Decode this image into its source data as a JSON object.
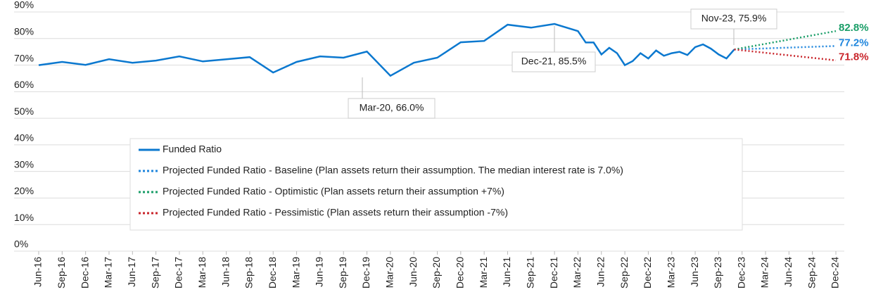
{
  "chart_data": {
    "type": "line",
    "xlim": [
      "Jun-16",
      "Dec-24"
    ],
    "xticks": [
      "Jun-16",
      "Sep-16",
      "Dec-16",
      "Mar-17",
      "Jun-17",
      "Sep-17",
      "Dec-17",
      "Mar-18",
      "Jun-18",
      "Sep-18",
      "Dec-18",
      "Mar-19",
      "Jun-19",
      "Sep-19",
      "Dec-19",
      "Mar-20",
      "Jun-20",
      "Sep-20",
      "Dec-20",
      "Mar-21",
      "Jun-21",
      "Sep-21",
      "Dec-21",
      "Mar-22",
      "Jun-22",
      "Sep-22",
      "Dec-22",
      "Mar-23",
      "Jun-23",
      "Sep-23",
      "Dec-23",
      "Mar-24",
      "Jun-24",
      "Sep-24",
      "Dec-24"
    ],
    "ylim": [
      0,
      90
    ],
    "yticks": [
      {
        "value": 0,
        "label": "0%"
      },
      {
        "value": 10,
        "label": "10%"
      },
      {
        "value": 20,
        "label": "20%"
      },
      {
        "value": 30,
        "label": "30%"
      },
      {
        "value": 40,
        "label": "40%"
      },
      {
        "value": 50,
        "label": "50%"
      },
      {
        "value": 60,
        "label": "60%"
      },
      {
        "value": 70,
        "label": "70%"
      },
      {
        "value": 80,
        "label": "80%"
      },
      {
        "value": 90,
        "label": "90%"
      }
    ],
    "grid": true,
    "series": [
      {
        "name": "Funded Ratio",
        "color": "#0b78cf",
        "style": "solid",
        "x": [
          "Jun-16",
          "Sep-16",
          "Dec-16",
          "Mar-17",
          "Jun-17",
          "Sep-17",
          "Dec-17",
          "Mar-18",
          "Jun-18",
          "Sep-18",
          "Dec-18",
          "Mar-19",
          "Jun-19",
          "Sep-19",
          "Dec-19",
          "Mar-20",
          "Jun-20",
          "Sep-20",
          "Dec-20",
          "Mar-21",
          "Jun-21",
          "Sep-21",
          "Dec-21",
          "Mar-22",
          "Apr-22",
          "May-22",
          "Jun-22",
          "Jul-22",
          "Aug-22",
          "Sep-22",
          "Oct-22",
          "Nov-22",
          "Dec-22",
          "Jan-23",
          "Feb-23",
          "Mar-23",
          "Apr-23",
          "May-23",
          "Jun-23",
          "Jul-23",
          "Aug-23",
          "Sep-23",
          "Oct-23",
          "Nov-23"
        ],
        "values": [
          70.0,
          71.2,
          70.1,
          72.2,
          70.9,
          71.7,
          73.3,
          71.4,
          72.2,
          73.0,
          67.2,
          71.2,
          73.3,
          72.8,
          75.1,
          66.0,
          70.9,
          72.8,
          78.6,
          79.1,
          85.2,
          84.1,
          85.5,
          82.8,
          78.5,
          78.5,
          74.0,
          76.5,
          74.5,
          70.0,
          71.5,
          74.5,
          72.5,
          75.5,
          73.5,
          74.5,
          75.0,
          73.8,
          76.8,
          77.8,
          76.2,
          74.0,
          72.5,
          75.9
        ]
      },
      {
        "name": "Projected Funded Ratio - Baseline (Plan assets return their assumption. The median interest rate is 7.0%)",
        "color": "#1f86dd",
        "style": "dotted",
        "x": [
          "Nov-23",
          "Dec-24"
        ],
        "values": [
          75.9,
          77.2
        ],
        "value_labels": [
          null,
          "77.2%"
        ]
      },
      {
        "name": "Projected Funded Ratio - Optimistic (Plan assets return their assumption +7%)",
        "color": "#1a9e68",
        "style": "dotted",
        "x": [
          "Nov-23",
          "Dec-24"
        ],
        "values": [
          75.9,
          82.8
        ],
        "value_labels": [
          null,
          "82.8%"
        ]
      },
      {
        "name": "Projected Funded Ratio - Pessimistic (Plan assets return their assumption -7%)",
        "color": "#c9262c",
        "style": "dotted",
        "x": [
          "Nov-23",
          "Dec-24"
        ],
        "values": [
          75.9,
          71.8
        ],
        "value_labels": [
          null,
          "71.8%"
        ]
      }
    ],
    "annotations": [
      "Mar-20, 66.0%",
      "Dec-21, 85.5%",
      "Nov-23, 75.9%"
    ]
  }
}
